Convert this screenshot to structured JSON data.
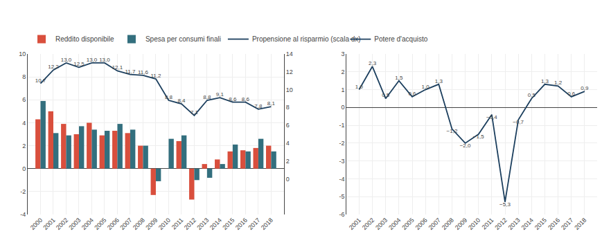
{
  "chart_data": [
    {
      "type": "bar",
      "categories": [
        2000,
        2001,
        2002,
        2003,
        2004,
        2005,
        2006,
        2007,
        2008,
        2009,
        2010,
        2011,
        2012,
        2013,
        2014,
        2015,
        2016,
        2017,
        2018
      ],
      "series": [
        {
          "name": "Reddito disponibile",
          "type": "bar",
          "color": "#d94f3d",
          "values": [
            4.3,
            5.0,
            3.9,
            3.0,
            4.0,
            2.9,
            3.3,
            3.1,
            2.0,
            -2.3,
            0.0,
            2.4,
            -2.7,
            0.4,
            0.8,
            1.5,
            1.6,
            1.8,
            2.0
          ]
        },
        {
          "name": "Spesa per consumi finali",
          "type": "bar",
          "color": "#336f7e",
          "values": [
            5.9,
            3.1,
            2.9,
            3.7,
            3.4,
            3.3,
            3.9,
            3.4,
            2.0,
            -1.1,
            2.6,
            2.9,
            -1.0,
            -0.8,
            0.4,
            2.1,
            1.5,
            2.6,
            1.5
          ]
        },
        {
          "name": "Propensione al risparmio (scala dx)",
          "type": "line",
          "color": "#1c3f5e",
          "axis": "y2",
          "data_labels": true,
          "values": [
            10.7,
            12.2,
            13.0,
            12.5,
            13.0,
            13.0,
            12.1,
            11.7,
            11.6,
            11.2,
            8.8,
            8.4,
            7.1,
            8.8,
            9.1,
            8.6,
            8.6,
            7.8,
            8.1
          ],
          "value_labels": [
            "10,7",
            "12,2",
            "13,0",
            "12,5",
            "13,0",
            "13,0",
            "12,1",
            "11,7",
            "11,6",
            "11,2",
            "8,8",
            "8,4",
            "7,1",
            "8,8",
            "9,1",
            "8,6",
            "8,6",
            "7,8",
            "8,1"
          ]
        }
      ],
      "ylim": [
        -4,
        10
      ],
      "yticks": [
        -4,
        -2,
        0,
        2,
        4,
        6,
        8,
        10
      ],
      "y2lim": [
        -4,
        14
      ],
      "y2ticks": [
        0,
        2,
        4,
        6,
        8,
        10,
        12,
        14
      ],
      "grid": true,
      "legend": "top"
    },
    {
      "type": "line",
      "categories": [
        2001,
        2002,
        2003,
        2004,
        2005,
        2006,
        2007,
        2008,
        2009,
        2010,
        2011,
        2012,
        2013,
        2014,
        2015,
        2016,
        2017,
        2018
      ],
      "series": [
        {
          "name": "Potere d'acquisto",
          "color": "#1c3f5e",
          "data_labels": true,
          "values": [
            1.0,
            2.3,
            0.5,
            1.5,
            0.6,
            1.0,
            1.3,
            -1.2,
            -2.0,
            -1.5,
            -0.4,
            -5.3,
            -0.7,
            0.5,
            1.3,
            1.2,
            0.6,
            0.9
          ],
          "value_labels": [
            "1,0",
            "2,3",
            "0,5",
            "1,5",
            "0,6",
            "1,0",
            "1,3",
            "−1,2",
            "−2,0",
            "−1,5",
            "−0,4",
            "−5,3",
            "−0,7",
            "0,5",
            "1,3",
            "1,2",
            "0,6",
            "0,9"
          ]
        }
      ],
      "ylim": [
        -6,
        3
      ],
      "yticks": [
        -6,
        -5,
        -4,
        -3,
        -2,
        -1,
        0,
        1,
        2,
        3
      ],
      "grid": true,
      "legend": "top"
    }
  ]
}
